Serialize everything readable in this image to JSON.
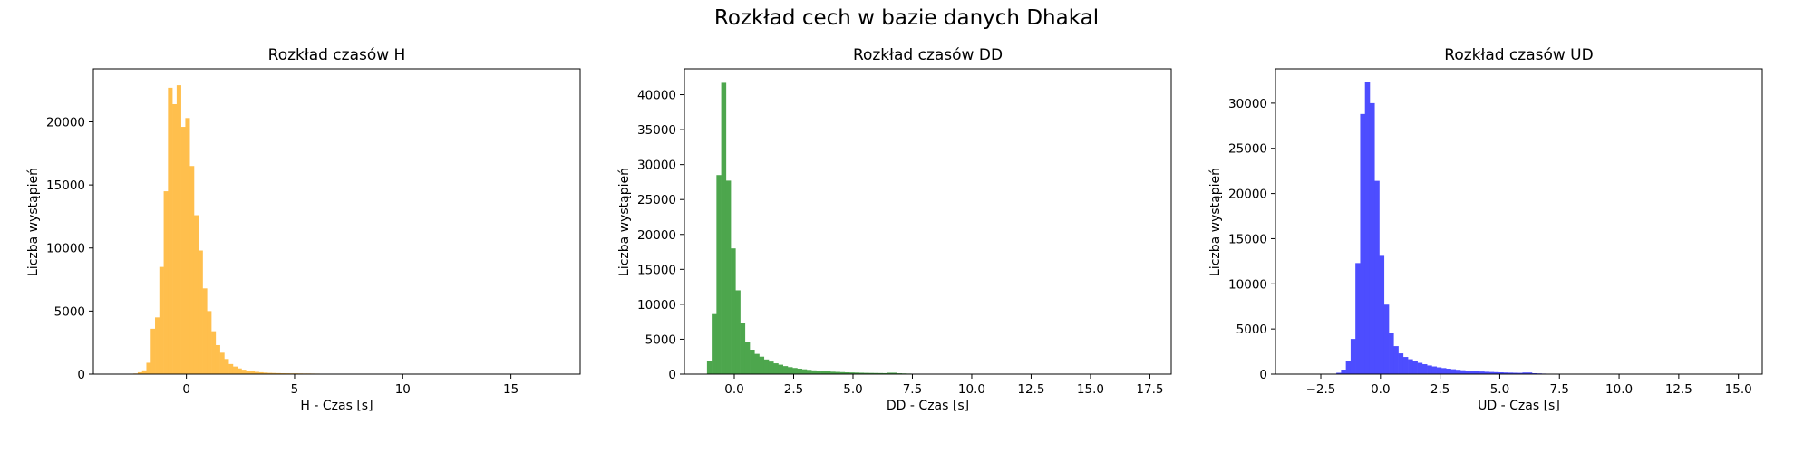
{
  "figure_title": "Rozkład cech w bazie danych Dhakal",
  "chart_data": [
    {
      "type": "histogram",
      "title": "Rozkład czasów H",
      "xlabel": "H - Czas [s]",
      "ylabel": "Liczba wystąpień",
      "color": "#FFBF4D",
      "xlim": [
        -4.3,
        18.2
      ],
      "ylim": [
        0,
        24200
      ],
      "xticks": [
        0,
        5,
        10,
        15
      ],
      "xtick_labels": [
        "0",
        "5",
        "10",
        "15"
      ],
      "yticks": [
        0,
        5000,
        10000,
        15000,
        20000
      ],
      "ytick_labels": [
        "0",
        "5000",
        "10000",
        "15000",
        "20000"
      ],
      "grid": false,
      "bins": [
        [
          -2.45,
          -2.25,
          50
        ],
        [
          -2.25,
          -2.05,
          150
        ],
        [
          -2.05,
          -1.85,
          300
        ],
        [
          -1.85,
          -1.65,
          900
        ],
        [
          -1.65,
          -1.45,
          3600
        ],
        [
          -1.45,
          -1.25,
          4500
        ],
        [
          -1.25,
          -1.05,
          8500
        ],
        [
          -1.05,
          -0.85,
          14500
        ],
        [
          -0.85,
          -0.65,
          22700
        ],
        [
          -0.65,
          -0.45,
          21400
        ],
        [
          -0.45,
          -0.25,
          22900
        ],
        [
          -0.25,
          -0.05,
          19600
        ],
        [
          -0.05,
          0.15,
          20300
        ],
        [
          0.15,
          0.35,
          16500
        ],
        [
          0.35,
          0.55,
          12600
        ],
        [
          0.55,
          0.75,
          9800
        ],
        [
          0.75,
          0.95,
          6800
        ],
        [
          0.95,
          1.15,
          5000
        ],
        [
          1.15,
          1.35,
          3400
        ],
        [
          1.35,
          1.55,
          2300
        ],
        [
          1.55,
          1.75,
          1700
        ],
        [
          1.75,
          1.95,
          1200
        ],
        [
          1.95,
          2.15,
          800
        ],
        [
          2.15,
          2.35,
          600
        ],
        [
          2.35,
          2.55,
          450
        ],
        [
          2.55,
          2.75,
          350
        ],
        [
          2.75,
          2.95,
          280
        ],
        [
          2.95,
          3.15,
          230
        ],
        [
          3.15,
          3.35,
          180
        ],
        [
          3.35,
          3.55,
          150
        ],
        [
          3.55,
          3.75,
          120
        ],
        [
          3.75,
          3.95,
          100
        ],
        [
          3.95,
          4.15,
          90
        ],
        [
          4.15,
          4.35,
          80
        ],
        [
          4.35,
          4.55,
          70
        ],
        [
          4.55,
          4.75,
          65
        ],
        [
          4.75,
          4.95,
          60
        ],
        [
          4.95,
          5.15,
          60
        ],
        [
          5.15,
          5.35,
          55
        ],
        [
          5.35,
          5.55,
          50
        ],
        [
          5.55,
          5.75,
          50
        ],
        [
          5.75,
          5.95,
          45
        ],
        [
          5.95,
          6.15,
          40
        ],
        [
          6.15,
          6.35,
          30
        ],
        [
          6.35,
          6.55,
          20
        ],
        [
          6.55,
          6.75,
          10
        ]
      ]
    },
    {
      "type": "histogram",
      "title": "Rozkład czasów DD",
      "xlabel": "DD - Czas [s]",
      "ylabel": "Liczba wystąpień",
      "color": "#4DA64D",
      "xlim": [
        -2.1,
        18.4
      ],
      "ylim": [
        0,
        43700
      ],
      "xticks": [
        0,
        2.5,
        5,
        7.5,
        10,
        12.5,
        15,
        17.5
      ],
      "xtick_labels": [
        "0.0",
        "2.5",
        "5.0",
        "7.5",
        "10.0",
        "12.5",
        "15.0",
        "17.5"
      ],
      "yticks": [
        0,
        5000,
        10000,
        15000,
        20000,
        25000,
        30000,
        35000,
        40000
      ],
      "ytick_labels": [
        "0",
        "5000",
        "10000",
        "15000",
        "20000",
        "25000",
        "30000",
        "35000",
        "40000"
      ],
      "grid": false,
      "bins": [
        [
          -1.15,
          -0.95,
          1900
        ],
        [
          -0.95,
          -0.75,
          8600
        ],
        [
          -0.75,
          -0.55,
          28500
        ],
        [
          -0.55,
          -0.35,
          41700
        ],
        [
          -0.35,
          -0.15,
          27700
        ],
        [
          -0.15,
          0.05,
          18000
        ],
        [
          0.05,
          0.25,
          12000
        ],
        [
          0.25,
          0.45,
          7300
        ],
        [
          0.45,
          0.65,
          4600
        ],
        [
          0.65,
          0.85,
          3500
        ],
        [
          0.85,
          1.05,
          2900
        ],
        [
          1.05,
          1.25,
          2500
        ],
        [
          1.25,
          1.45,
          2100
        ],
        [
          1.45,
          1.65,
          1800
        ],
        [
          1.65,
          1.85,
          1550
        ],
        [
          1.85,
          2.05,
          1350
        ],
        [
          2.05,
          2.25,
          1150
        ],
        [
          2.25,
          2.45,
          1000
        ],
        [
          2.45,
          2.65,
          880
        ],
        [
          2.65,
          2.85,
          780
        ],
        [
          2.85,
          3.05,
          690
        ],
        [
          3.05,
          3.25,
          610
        ],
        [
          3.25,
          3.45,
          540
        ],
        [
          3.45,
          3.65,
          480
        ],
        [
          3.65,
          3.85,
          430
        ],
        [
          3.85,
          4.05,
          390
        ],
        [
          4.05,
          4.25,
          350
        ],
        [
          4.25,
          4.45,
          320
        ],
        [
          4.45,
          4.65,
          290
        ],
        [
          4.65,
          4.85,
          260
        ],
        [
          4.85,
          5.05,
          240
        ],
        [
          5.05,
          5.25,
          220
        ],
        [
          5.25,
          5.45,
          200
        ],
        [
          5.45,
          5.65,
          180
        ],
        [
          5.65,
          5.85,
          170
        ],
        [
          5.85,
          6.05,
          160
        ],
        [
          6.05,
          6.25,
          150
        ],
        [
          6.25,
          6.45,
          140
        ],
        [
          6.45,
          6.65,
          200
        ],
        [
          6.65,
          6.85,
          200
        ],
        [
          6.85,
          7.05,
          120
        ],
        [
          7.05,
          7.25,
          100
        ],
        [
          7.25,
          7.45,
          80
        ],
        [
          7.45,
          7.65,
          60
        ],
        [
          7.65,
          7.85,
          40
        ],
        [
          7.85,
          8.05,
          20
        ]
      ]
    },
    {
      "type": "histogram",
      "title": "Rozkład czasów UD",
      "xlabel": "UD - Czas [s]",
      "ylabel": "Liczba wystąpień",
      "color": "#4D4DFF",
      "xlim": [
        -4.4,
        16.0
      ],
      "ylim": [
        0,
        33800
      ],
      "xticks": [
        -2.5,
        0,
        2.5,
        5,
        7.5,
        10,
        12.5,
        15
      ],
      "xtick_labels": [
        "−2.5",
        "0.0",
        "2.5",
        "5.0",
        "7.5",
        "10.0",
        "12.5",
        "15.0"
      ],
      "yticks": [
        0,
        5000,
        10000,
        15000,
        20000,
        25000,
        30000
      ],
      "ytick_labels": [
        "0",
        "5000",
        "10000",
        "15000",
        "20000",
        "25000",
        "30000"
      ],
      "grid": false,
      "bins": [
        [
          -2.05,
          -1.85,
          50
        ],
        [
          -1.85,
          -1.65,
          150
        ],
        [
          -1.65,
          -1.45,
          500
        ],
        [
          -1.45,
          -1.25,
          1500
        ],
        [
          -1.25,
          -1.05,
          3900
        ],
        [
          -1.05,
          -0.85,
          12300
        ],
        [
          -0.85,
          -0.65,
          28800
        ],
        [
          -0.65,
          -0.45,
          32300
        ],
        [
          -0.45,
          -0.25,
          30000
        ],
        [
          -0.25,
          -0.05,
          21400
        ],
        [
          -0.05,
          0.15,
          13100
        ],
        [
          0.15,
          0.35,
          7700
        ],
        [
          0.35,
          0.55,
          4600
        ],
        [
          0.55,
          0.75,
          3100
        ],
        [
          0.75,
          0.95,
          2300
        ],
        [
          0.95,
          1.15,
          1900
        ],
        [
          1.15,
          1.35,
          1650
        ],
        [
          1.35,
          1.55,
          1450
        ],
        [
          1.55,
          1.75,
          1250
        ],
        [
          1.75,
          1.95,
          1100
        ],
        [
          1.95,
          2.15,
          960
        ],
        [
          2.15,
          2.35,
          850
        ],
        [
          2.35,
          2.55,
          750
        ],
        [
          2.55,
          2.75,
          670
        ],
        [
          2.75,
          2.95,
          600
        ],
        [
          2.95,
          3.15,
          540
        ],
        [
          3.15,
          3.35,
          480
        ],
        [
          3.35,
          3.55,
          430
        ],
        [
          3.55,
          3.75,
          390
        ],
        [
          3.75,
          3.95,
          350
        ],
        [
          3.95,
          4.15,
          320
        ],
        [
          4.15,
          4.35,
          290
        ],
        [
          4.35,
          4.55,
          260
        ],
        [
          4.55,
          4.75,
          240
        ],
        [
          4.75,
          4.95,
          220
        ],
        [
          4.95,
          5.15,
          200
        ],
        [
          5.15,
          5.35,
          180
        ],
        [
          5.35,
          5.55,
          165
        ],
        [
          5.55,
          5.75,
          150
        ],
        [
          5.75,
          5.95,
          140
        ],
        [
          5.95,
          6.15,
          180
        ],
        [
          6.15,
          6.35,
          180
        ],
        [
          6.35,
          6.55,
          100
        ],
        [
          6.55,
          6.75,
          80
        ],
        [
          6.75,
          6.95,
          60
        ],
        [
          6.95,
          7.15,
          40
        ],
        [
          7.15,
          7.35,
          20
        ]
      ]
    }
  ]
}
